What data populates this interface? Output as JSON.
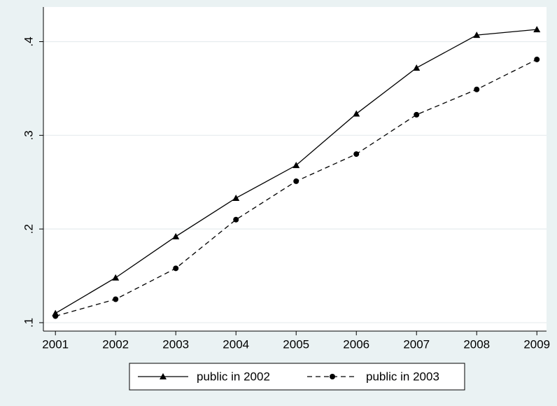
{
  "chart_data": {
    "type": "line",
    "x": [
      2001,
      2002,
      2003,
      2004,
      2005,
      2006,
      2007,
      2008,
      2009
    ],
    "series": [
      {
        "name": "public in 2002",
        "color": "#000000",
        "line_style": "solid",
        "marker": "triangle",
        "values": [
          0.11,
          0.148,
          0.192,
          0.233,
          0.268,
          0.323,
          0.372,
          0.407,
          0.413
        ]
      },
      {
        "name": "public in 2003",
        "color": "#000000",
        "line_style": "dashed",
        "marker": "circle",
        "values": [
          0.107,
          0.125,
          0.158,
          0.21,
          0.251,
          0.28,
          0.322,
          0.349,
          0.381
        ]
      }
    ],
    "xlim": [
      2000.8,
      2009.16
    ],
    "xticks": [
      2001,
      2002,
      2003,
      2004,
      2005,
      2006,
      2007,
      2008,
      2009
    ],
    "ylim": [
      0.091,
      0.437
    ],
    "yticks": [
      {
        "value": 0.1,
        "label": ".1"
      },
      {
        "value": 0.2,
        "label": ".2"
      },
      {
        "value": 0.3,
        "label": ".3"
      },
      {
        "value": 0.4,
        "label": ".4"
      }
    ],
    "grid": true,
    "legend": "bottom"
  }
}
